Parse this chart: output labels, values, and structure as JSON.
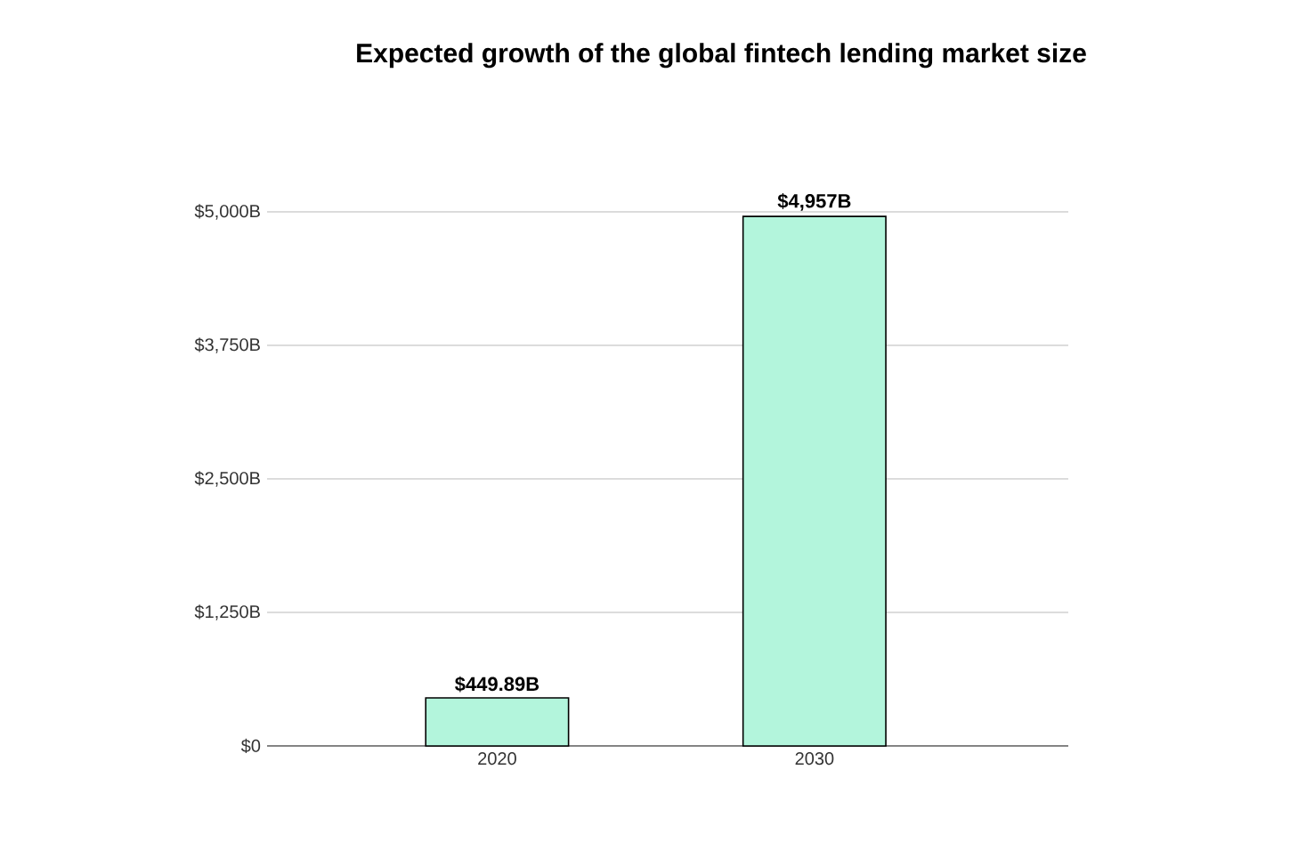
{
  "chart_data": {
    "type": "bar",
    "title": "Expected growth of the global fintech lending market size",
    "categories": [
      "2020",
      "2030"
    ],
    "values": [
      449.89,
      4957
    ],
    "value_labels": [
      "$449.89B",
      "$4,957B"
    ],
    "color": "#b3f5dc",
    "ylim": [
      0,
      5000
    ],
    "yticks": [
      {
        "value": 0,
        "label": "$0"
      },
      {
        "value": 1250,
        "label": "$1,250B"
      },
      {
        "value": 2500,
        "label": "$2,500B"
      },
      {
        "value": 3750,
        "label": "$3,750B"
      },
      {
        "value": 5000,
        "label": "$5,000B"
      }
    ],
    "grid": "y"
  }
}
